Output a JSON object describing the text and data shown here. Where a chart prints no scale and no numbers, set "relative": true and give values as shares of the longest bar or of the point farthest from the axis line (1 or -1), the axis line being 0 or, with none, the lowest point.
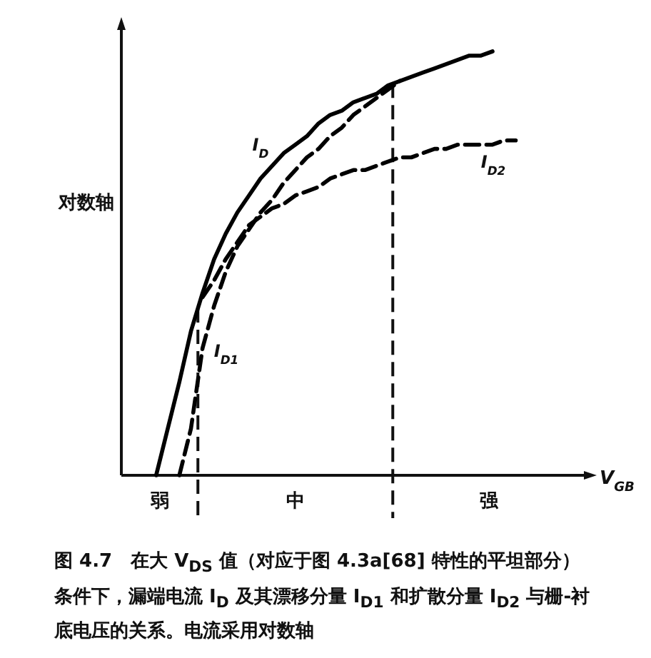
{
  "chart_data": {
    "type": "line",
    "relative": true,
    "legend": false,
    "marker": "none",
    "xlabel": "V$_{GB}$",
    "ylabel": "对数轴",
    "categories": [
      null,
      null,
      null,
      null,
      null,
      null,
      null,
      null,
      null,
      null,
      null,
      null,
      null,
      null,
      null,
      null,
      null,
      null,
      null,
      null,
      null,
      null,
      null,
      null,
      null,
      null,
      null,
      null,
      null,
      null,
      null,
      null,
      null,
      null,
      null
    ],
    "series": [
      {
        "name": "I$_{D}$",
        "color": "#000000",
        "line_style": "solid",
        "values": [
          null,
          null,
          null,
          0,
          0.11,
          0.22,
          0.34,
          0.43,
          0.51,
          0.57,
          0.62,
          0.66,
          0.7,
          0.73,
          0.76,
          0.78,
          0.8,
          0.83,
          0.85,
          0.86,
          0.88,
          0.89,
          0.9,
          0.92,
          0.93,
          0.94,
          0.95,
          0.96,
          0.97,
          0.98,
          0.99,
          0.99,
          1.0,
          null,
          null
        ]
      },
      {
        "name": "I$_{D1}$",
        "color": "#000000",
        "line_style": "dashed",
        "values": [
          null,
          null,
          null,
          null,
          null,
          0,
          0.11,
          0.3,
          0.4,
          0.48,
          0.54,
          0.58,
          0.62,
          0.65,
          0.69,
          0.72,
          0.75,
          0.77,
          0.8,
          0.82,
          0.85,
          0.87,
          0.89,
          0.91,
          0.93,
          null,
          null,
          null,
          null,
          null,
          null,
          null,
          null,
          null,
          null
        ]
      },
      {
        "name": "I$_{D2}$",
        "color": "#000000",
        "line_style": "dashed",
        "values": [
          null,
          null,
          null,
          null,
          null,
          null,
          null,
          0.42,
          0.46,
          0.51,
          0.55,
          0.59,
          0.61,
          0.63,
          0.64,
          0.66,
          0.67,
          0.68,
          0.7,
          0.71,
          0.72,
          0.72,
          0.73,
          0.74,
          0.75,
          0.75,
          0.76,
          0.77,
          0.77,
          0.78,
          0.78,
          0.78,
          0.78,
          0.79,
          0.79
        ]
      }
    ],
    "annotations": [
      "弱",
      "中",
      "强",
      "图 4.7　在大 V$_{DS}$ 值（对应于图 4.3a[68] 特性的平坦部分）条件下，漏端电流 I$_{D}$ 及其漂移分量 I$_{D1}$ 和扩散分量 I$_{D2}$ 与栅-衬底电压的关系。电流采用对数轴"
    ]
  }
}
